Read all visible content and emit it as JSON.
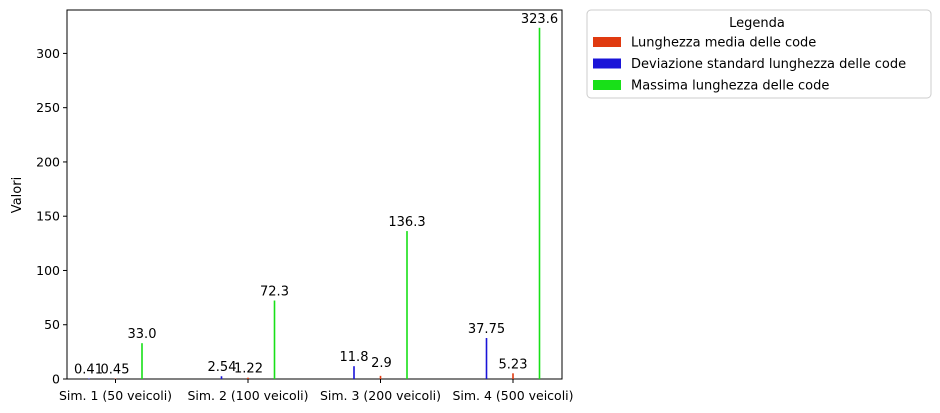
{
  "chart_data": {
    "type": "bar",
    "title": "",
    "xlabel": "",
    "ylabel": "Valori",
    "ylim": [
      0,
      340
    ],
    "yticks": [
      0,
      50,
      100,
      150,
      200,
      250,
      300
    ],
    "categories": [
      "Sim. 1 (50 veicoli)",
      "Sim. 2 (100 veicoli)",
      "Sim. 3 (200 veicoli)",
      "Sim. 4 (500 veicoli)"
    ],
    "series": [
      {
        "name": "Lunghezza media delle code",
        "color": "#e03a10",
        "values": [
          0.41,
          1.22,
          2.9,
          5.23
        ]
      },
      {
        "name": "Deviazione standard lunghezza delle code",
        "color": "#1a14d8",
        "values": [
          0.45,
          2.54,
          11.8,
          37.75
        ]
      },
      {
        "name": "Massima lunghezza delle code",
        "color": "#18e018",
        "values": [
          33.0,
          72.3,
          136.3,
          323.6
        ]
      }
    ],
    "data_labels": [
      [
        "0.41",
        "1.22",
        "2.9",
        "5.23"
      ],
      [
        "0.45",
        "2.54",
        "11.8",
        "37.75"
      ],
      [
        "33.0",
        "72.3",
        "136.3",
        "323.6"
      ]
    ],
    "legend": {
      "title": "Legenda",
      "placement": "outside-top-right"
    },
    "grid": false
  }
}
